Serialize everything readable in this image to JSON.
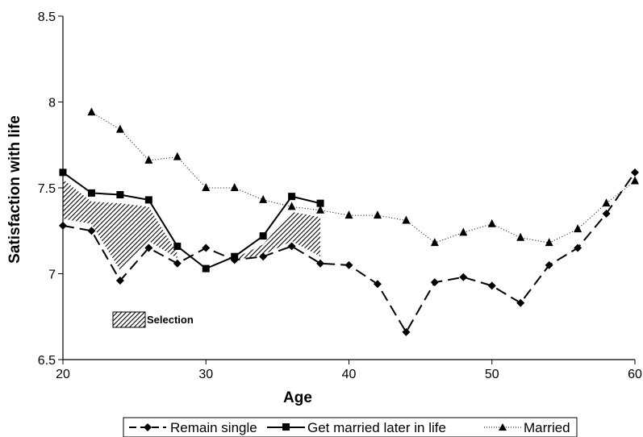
{
  "chart_data": {
    "type": "line",
    "title": "",
    "xlabel": "Age",
    "ylabel": "Satisfaction with life",
    "xlim": [
      20,
      60
    ],
    "ylim": [
      6.5,
      8.5
    ],
    "x_ticks": [
      "20",
      "30",
      "40",
      "50",
      "60"
    ],
    "y_ticks": [
      "6.5",
      "7",
      "7.5",
      "8",
      "8.5"
    ],
    "grid": false,
    "legend_position": "bottom",
    "series": [
      {
        "name": "Remain single",
        "line_style": "dashed",
        "marker": "diamond",
        "x": [
          20,
          22,
          24,
          26,
          28,
          30,
          32,
          34,
          36,
          38,
          40,
          42,
          44,
          46,
          48,
          50,
          52,
          54,
          56,
          58,
          60
        ],
        "y": [
          7.28,
          7.25,
          6.96,
          7.15,
          7.06,
          7.15,
          7.08,
          7.1,
          7.16,
          7.06,
          7.05,
          6.94,
          6.66,
          6.95,
          6.98,
          6.93,
          6.83,
          7.05,
          7.15,
          7.35,
          7.59
        ]
      },
      {
        "name": "Get married later in life",
        "line_style": "solid",
        "marker": "square",
        "x": [
          20,
          22,
          24,
          26,
          28,
          30,
          32,
          34,
          36,
          38
        ],
        "y": [
          7.59,
          7.47,
          7.46,
          7.43,
          7.16,
          7.03,
          7.1,
          7.22,
          7.45,
          7.41
        ]
      },
      {
        "name": "Married",
        "line_style": "dotted",
        "marker": "triangle",
        "x": [
          22,
          24,
          26,
          28,
          30,
          32,
          34,
          36,
          38,
          40,
          42,
          44,
          46,
          48,
          50,
          52,
          54,
          56,
          58,
          60
        ],
        "y": [
          7.94,
          7.84,
          7.66,
          7.68,
          7.5,
          7.5,
          7.43,
          7.39,
          7.37,
          7.34,
          7.34,
          7.31,
          7.18,
          7.24,
          7.29,
          7.21,
          7.18,
          7.26,
          7.41,
          7.54
        ]
      }
    ],
    "annotation": {
      "label": "Selection",
      "region_1": {
        "x": [
          20,
          22,
          24,
          26,
          28
        ],
        "upper": [
          7.55,
          7.42,
          7.41,
          7.39,
          7.12
        ],
        "lower": [
          7.32,
          7.29,
          7.02,
          7.19,
          7.09
        ]
      },
      "region_2": {
        "x": [
          32,
          34,
          36,
          38
        ],
        "upper": [
          7.09,
          7.17,
          7.36,
          7.33
        ],
        "lower": [
          7.08,
          7.11,
          7.19,
          7.1
        ]
      }
    },
    "colors": {
      "line": "#000000",
      "background": "#ffffff"
    }
  }
}
